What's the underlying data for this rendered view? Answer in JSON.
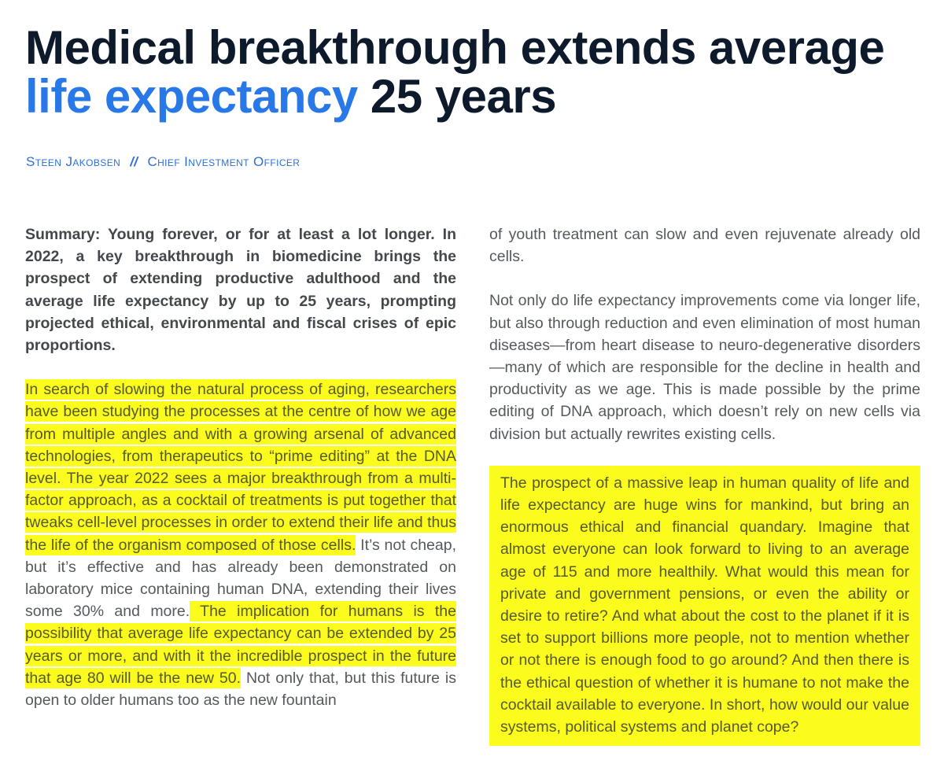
{
  "headline": {
    "part1": "Medical breakthrough extends average ",
    "highlight": "life expectancy",
    "part2": " 25 years"
  },
  "byline": {
    "author": "Steen Jakobsen",
    "separator": "//",
    "role": "Chief Investment Officer"
  },
  "left_column": {
    "summary": "Summary: Young forever, or for at least a lot longer. In 2022, a key breakthrough in biomedicine brings the prospect of extending productive adulthood and the average life expectancy by up to 25 years, prompting projected ethical, environmental and fiscal crises of epic proportions.",
    "highlight1": "In search of slowing the natural process of aging, researchers have been studying the processes at the centre of how we age from multiple angles and with a growing arsenal of advanced technologies, from therapeutics to “prime editing” at the DNA level. The year 2022 sees a major breakthrough from a multi-factor approach, as a cocktail of treatments is put together that tweaks cell-level processes in order to extend their life and thus the life of the organism composed of those cells.",
    "plain1": " It’s not cheap, but it’s effective and has already been demonstrated on laboratory mice containing human DNA, extending their lives some 30% and more.",
    "highlight2": " The implication for humans is the possibility that average life expectancy can be extended by 25 years or more, and with it the incredible prospect in the future that age 80 will be the new 50.",
    "plain2": " Not only that, but this future is open to older humans too as the new fountain"
  },
  "right_column": {
    "continuation": "of youth treatment can slow and even rejuvenate already old cells.",
    "paragraph2": "Not only do life expectancy improvements come via longer life, but also through reduction and even elimination of most human diseases—from heart disease to neuro-degenerative disorders—many of which are responsible for the decline in health and productivity as we age. This is made possible by the prime editing of DNA approach, which doesn’t rely on new cells via division but actually rewrites existing cells.",
    "highlight_paragraph": "The prospect of a massive leap in human quality of life and life expectancy are huge wins for mankind, but bring an enormous ethical and financial quandary. Imagine that almost everyone can look forward to living to an average age of 115 and more healthily. What would this mean for private and government pensions, or even the ability or desire to retire? And what about the cost to the planet if it is set to support billions more people, not to mention whether or not there is enough food to go around? And then there is the ethical question of whether it is humane to not make the cocktail available to everyone. In short, how would our value systems, political systems and planet cope?"
  },
  "colors": {
    "headline": "#0d1a2b",
    "accent": "#2878e8",
    "byline": "#2d6fd6",
    "highlight": "#fbfb1e",
    "body_text": "#55595e"
  }
}
